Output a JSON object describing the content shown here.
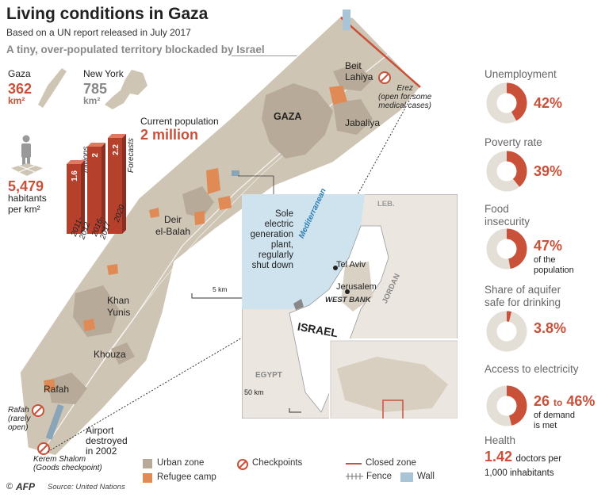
{
  "header": {
    "title": "Living conditions in Gaza",
    "subtitle": "Based on a UN report released in July 2017",
    "tagline": "A tiny, over-populated territory blockaded by Israel"
  },
  "area": {
    "gaza_label": "Gaza",
    "gaza_value": "362",
    "gaza_unit": "km²",
    "ny_label": "New York",
    "ny_value": "785",
    "ny_unit": "km²"
  },
  "density": {
    "value": "5,479",
    "line1": "habitants",
    "line2": "per km²"
  },
  "population": {
    "label": "Current population",
    "value": "2 million",
    "unit_line1": "in",
    "unit_line2": "millions",
    "forecasts": "Forecasts",
    "bars": [
      {
        "value": "1.6",
        "label1": "2011-",
        "label2": "2012",
        "num": 1.6
      },
      {
        "value": "2",
        "label1": "2016-",
        "label2": "2017",
        "num": 2
      },
      {
        "value": "2.2",
        "label1": "2020",
        "label2": "",
        "num": 2.2
      }
    ]
  },
  "map": {
    "beit_lahiya_1": "Beit",
    "beit_lahiya_2": "Lahiya",
    "gaza": "GAZA",
    "jabaliya": "Jabaliya",
    "erez": "Erez",
    "erez_note1": "(open for some",
    "erez_note2": "medical cases)",
    "deir_1": "Deir",
    "deir_2": "el-Balah",
    "plant_1": "Sole",
    "plant_2": "electric",
    "plant_3": "generation",
    "plant_4": "plant,",
    "plant_5": "regularly",
    "plant_6": "shut down",
    "khan_1": "Khan",
    "khan_2": "Yunis",
    "khouza": "Khouza",
    "rafah": "Rafah",
    "rafah_cp1": "Rafah",
    "rafah_cp2": "(rarely",
    "rafah_cp3": "open)",
    "airport_1": "Airport",
    "airport_2": "destroyed",
    "airport_3": "in 2002",
    "kerem_1": "Kerem Shalom",
    "kerem_2": "(Goods checkpoint)",
    "scale": "5 km"
  },
  "inset": {
    "leb": "LEB.",
    "mediterranean": "Mediterranean",
    "tel_aviv": "Tel Aviv",
    "jerusalem": "Jerusalem",
    "west_bank": "WEST BANK",
    "jordan": "JORDAN",
    "israel": "ISRAEL",
    "egypt": "EGYPT",
    "scale": "50 km"
  },
  "legend": {
    "urban": "Urban zone",
    "refugee": "Refugee camp",
    "checkpoints": "Checkpoints",
    "closed": "Closed zone",
    "fence": "Fence",
    "wall": "Wall"
  },
  "footer": {
    "copyright": "©",
    "agency": "AFP",
    "source": "Source: United Nations"
  },
  "stats": [
    {
      "label1": "Unemployment",
      "label2": "",
      "value": "42%",
      "fraction": 0.42,
      "note1": "",
      "note2": ""
    },
    {
      "label1": "Poverty rate",
      "label2": "",
      "value": "39%",
      "fraction": 0.39,
      "note1": "",
      "note2": ""
    },
    {
      "label1": "Food",
      "label2": "insecurity",
      "value": "47%",
      "fraction": 0.47,
      "note1": "of the",
      "note2": "population"
    },
    {
      "label1": "Share of aquifer",
      "label2": "safe for drinking",
      "value": "3.8%",
      "fraction": 0.038,
      "note1": "",
      "note2": ""
    }
  ],
  "electricity": {
    "label": "Access to electricity",
    "v1": "26",
    "to": "to",
    "v2": "46%",
    "fraction": 0.46,
    "note1": "of demand",
    "note2": "is met"
  },
  "health": {
    "label": "Health",
    "value": "1.42",
    "line1": "doctors per",
    "line2": "1,000 inhabitants"
  },
  "colors": {
    "accent": "#c9513a",
    "strip": "#cfc5b5",
    "urban": "#b7aa98",
    "refugee": "#e08a55",
    "ring": "#e4dfd6"
  }
}
